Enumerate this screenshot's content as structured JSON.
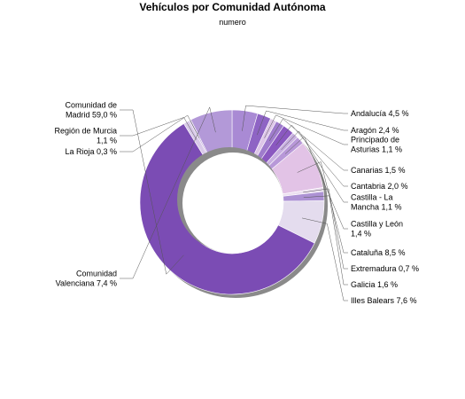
{
  "chart_data": {
    "type": "pie",
    "title": "Vehículos por Comunidad Autónoma",
    "subtitle": "numero",
    "slices": [
      {
        "name": "Andalucía",
        "value": 4.5,
        "label": [
          "Andalucía 4,5 %"
        ],
        "color": "#a98ad4"
      },
      {
        "name": "Aragón",
        "value": 2.4,
        "label": [
          "Aragón 2,4 %"
        ],
        "color": "#8e64c4"
      },
      {
        "name": "Principado de Asturias",
        "value": 1.1,
        "label": [
          "Principado de",
          "Asturias 1,1 %"
        ],
        "color": "#ddc6e8"
      },
      {
        "name": "Canarias",
        "value": 1.5,
        "label": [
          "Canarias 1,5 %"
        ],
        "color": "#9f7ccc"
      },
      {
        "name": "Cantabria",
        "value": 2.0,
        "label": [
          "Cantabria 2,0 %"
        ],
        "color": "#8a58c0"
      },
      {
        "name": "Castilla - La Mancha",
        "value": 1.1,
        "label": [
          "Castilla - La",
          "Mancha 1,1 %"
        ],
        "color": "#c8b0e0"
      },
      {
        "name": "Castilla y León",
        "value": 1.4,
        "label": [
          "Castilla y León",
          "1,4 %"
        ],
        "color": "#b898d8"
      },
      {
        "name": "Cataluña",
        "value": 8.5,
        "label": [
          "Cataluña 8,5 %"
        ],
        "color": "#e2c3e6"
      },
      {
        "name": "Extremadura",
        "value": 0.7,
        "label": [
          "Extremadura 0,7 %"
        ],
        "color": "#ebdff0"
      },
      {
        "name": "Galicia",
        "value": 1.6,
        "label": [
          "Galicia 1,6 %"
        ],
        "color": "#ad92d4"
      },
      {
        "name": "Illes Balears",
        "value": 7.6,
        "label": [
          "Illes Balears 7,6 %"
        ],
        "color": "#e4dcee"
      },
      {
        "name": "Comunidad de Madrid",
        "value": 59.0,
        "label": [
          "Comunidad de",
          "Madrid 59,0 %"
        ],
        "color": "#7b4cb4"
      },
      {
        "name": "Región de Murcia",
        "value": 1.1,
        "label": [
          "Región de Murcia",
          "1,1 %"
        ],
        "color": "#d9cae9"
      },
      {
        "name": "La Rioja",
        "value": 0.3,
        "label": [
          "La Rioja 0,3 %"
        ],
        "color": "#c2aedd"
      },
      {
        "name": "Comunidad Valenciana",
        "value": 7.4,
        "label": [
          "Comunidad",
          "Valenciana 7,4 %"
        ],
        "color": "#b399d8"
      }
    ]
  }
}
